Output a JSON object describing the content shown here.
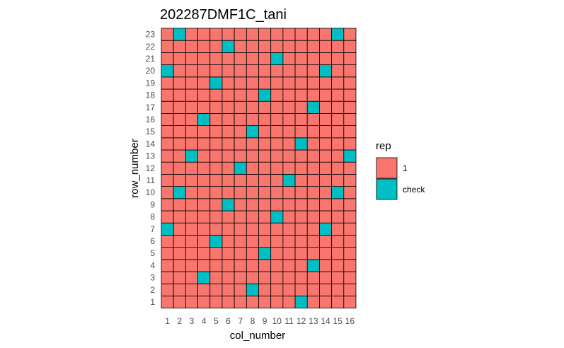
{
  "chart_data": {
    "type": "heatmap",
    "title": "202287DMF1C_tani",
    "xlabel": "col_number",
    "ylabel": "row_number",
    "x_categories": [
      1,
      2,
      3,
      4,
      5,
      6,
      7,
      8,
      9,
      10,
      11,
      12,
      13,
      14,
      15,
      16
    ],
    "y_categories": [
      1,
      2,
      3,
      4,
      5,
      6,
      7,
      8,
      9,
      10,
      11,
      12,
      13,
      14,
      15,
      16,
      17,
      18,
      19,
      20,
      21,
      22,
      23
    ],
    "x_tick_labels": [
      "1",
      "2",
      "3",
      "4",
      "5",
      "6",
      "7",
      "8",
      "9",
      "10",
      "11",
      "12",
      "13",
      "14",
      "15",
      "16"
    ],
    "y_tick_labels": [
      "1",
      "2",
      "3",
      "4",
      "5",
      "6",
      "7",
      "8",
      "9",
      "10",
      "11",
      "12",
      "13",
      "14",
      "15",
      "16",
      "17",
      "18",
      "19",
      "20",
      "21",
      "22",
      "23"
    ],
    "default_value": "1",
    "check_cells": [
      {
        "row": 23,
        "col": 2
      },
      {
        "row": 23,
        "col": 15
      },
      {
        "row": 22,
        "col": 6
      },
      {
        "row": 21,
        "col": 10
      },
      {
        "row": 20,
        "col": 1
      },
      {
        "row": 20,
        "col": 14
      },
      {
        "row": 19,
        "col": 5
      },
      {
        "row": 18,
        "col": 9
      },
      {
        "row": 17,
        "col": 13
      },
      {
        "row": 16,
        "col": 4
      },
      {
        "row": 15,
        "col": 8
      },
      {
        "row": 14,
        "col": 12
      },
      {
        "row": 13,
        "col": 3
      },
      {
        "row": 13,
        "col": 16
      },
      {
        "row": 12,
        "col": 7
      },
      {
        "row": 11,
        "col": 11
      },
      {
        "row": 10,
        "col": 2
      },
      {
        "row": 10,
        "col": 15
      },
      {
        "row": 9,
        "col": 6
      },
      {
        "row": 8,
        "col": 10
      },
      {
        "row": 7,
        "col": 1
      },
      {
        "row": 7,
        "col": 14
      },
      {
        "row": 6,
        "col": 5
      },
      {
        "row": 5,
        "col": 9
      },
      {
        "row": 4,
        "col": 13
      },
      {
        "row": 3,
        "col": 4
      },
      {
        "row": 2,
        "col": 8
      },
      {
        "row": 1,
        "col": 12
      }
    ],
    "legend": {
      "title": "rep",
      "placement": "right",
      "entries": [
        {
          "label": "1",
          "color": "#F8766D"
        },
        {
          "label": "check",
          "color": "#00BFC4"
        }
      ]
    },
    "colors": {
      "1": "#F8766D",
      "check": "#00BFC4",
      "border": "#000000"
    }
  }
}
